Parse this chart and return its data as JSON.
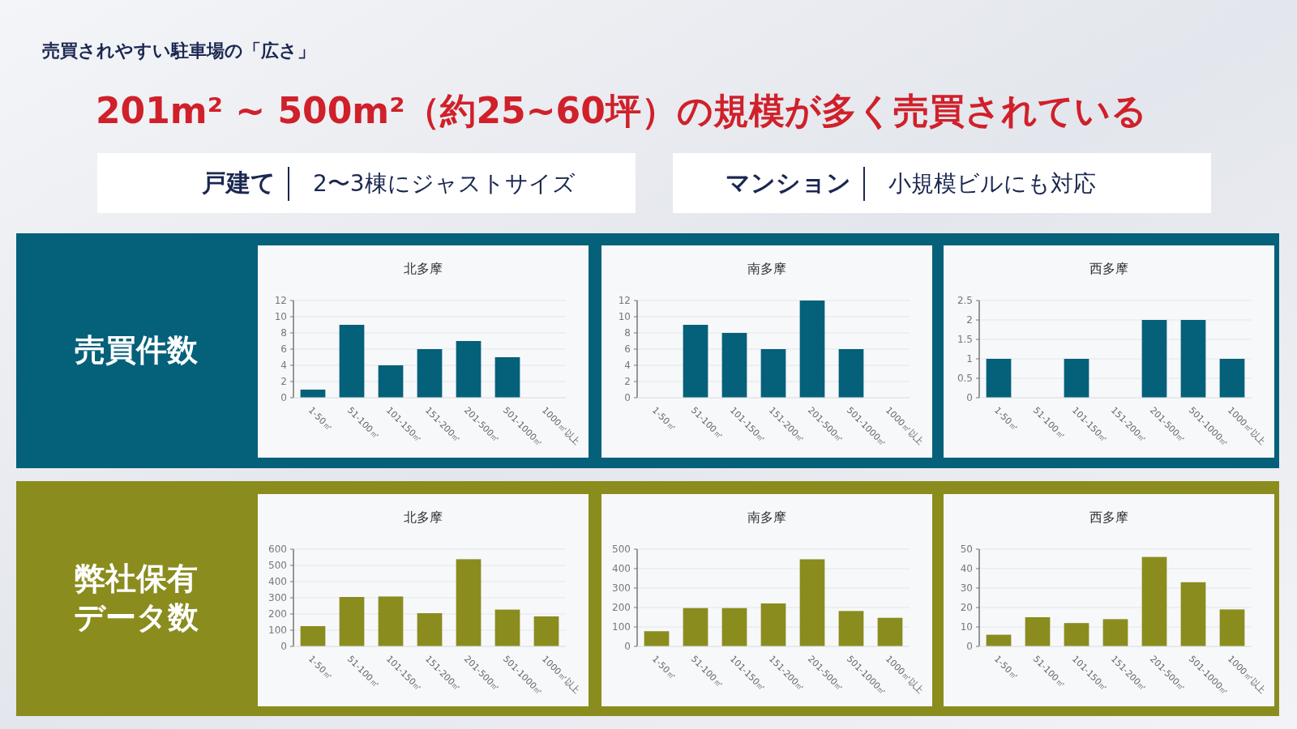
{
  "chart_data": [
    {
      "type": "bar",
      "title": "北多摩",
      "ylabel": "売買件数",
      "annotations": [
        "売買されやすい駐車場の「広さ」",
        "201m² ~ 500m²（約25~60坪）の規模が多く売買されている",
        "戸建て",
        "2〜3棟にジャストサイズ",
        "マンション",
        "小規模ビルにも対応"
      ],
      "categories": [
        "1-50㎡",
        "51-100㎡",
        "101-150㎡",
        "151-200㎡",
        "201-500㎡",
        "501-1000㎡",
        "1000㎡以上"
      ],
      "values": [
        1,
        9,
        4,
        6,
        7,
        5,
        0
      ],
      "color": "#05607a",
      "ylim": [
        0,
        12
      ],
      "yticks": [
        0,
        2,
        4,
        6,
        8,
        10,
        12
      ],
      "grid": "y"
    },
    {
      "type": "bar",
      "title": "南多摩",
      "categories": [
        "1-50㎡",
        "51-100㎡",
        "101-150㎡",
        "151-200㎡",
        "201-500㎡",
        "501-1000㎡",
        "1000㎡以上"
      ],
      "values": [
        0,
        9,
        8,
        6,
        12,
        6,
        0
      ],
      "color": "#05607a",
      "ylim": [
        0,
        12
      ],
      "yticks": [
        0,
        2,
        4,
        6,
        8,
        10,
        12
      ],
      "grid": "y"
    },
    {
      "type": "bar",
      "title": "西多摩",
      "categories": [
        "1-50㎡",
        "51-100㎡",
        "101-150㎡",
        "151-200㎡",
        "201-500㎡",
        "501-1000㎡",
        "1000㎡以上"
      ],
      "values": [
        1,
        0,
        1,
        0,
        2,
        2,
        1
      ],
      "color": "#05607a",
      "ylim": [
        0,
        2.5
      ],
      "yticks": [
        0,
        0.5,
        1,
        1.5,
        2,
        2.5
      ],
      "grid": "y"
    },
    {
      "type": "bar",
      "title": "北多摩",
      "ylabel": "弊社保有データ数",
      "categories": [
        "1-50㎡",
        "51-100㎡",
        "101-150㎡",
        "151-200㎡",
        "201-500㎡",
        "501-1000㎡",
        "1000㎡以上"
      ],
      "values": [
        125,
        305,
        308,
        205,
        538,
        227,
        185
      ],
      "color": "#8a8c1e",
      "ylim": [
        0,
        600
      ],
      "yticks": [
        0,
        100,
        200,
        300,
        400,
        500,
        600
      ],
      "grid": "y"
    },
    {
      "type": "bar",
      "title": "南多摩",
      "categories": [
        "1-50㎡",
        "51-100㎡",
        "101-150㎡",
        "151-200㎡",
        "201-500㎡",
        "501-1000㎡",
        "1000㎡以上"
      ],
      "values": [
        78,
        197,
        197,
        221,
        448,
        182,
        147
      ],
      "color": "#8a8c1e",
      "ylim": [
        0,
        500
      ],
      "yticks": [
        0,
        100,
        200,
        300,
        400,
        500
      ],
      "grid": "y"
    },
    {
      "type": "bar",
      "title": "西多摩",
      "categories": [
        "1-50㎡",
        "51-100㎡",
        "101-150㎡",
        "151-200㎡",
        "201-500㎡",
        "501-1000㎡",
        "1000㎡以上"
      ],
      "values": [
        6,
        15,
        12,
        14,
        46,
        33,
        19
      ],
      "color": "#8a8c1e",
      "ylim": [
        0,
        50
      ],
      "yticks": [
        0,
        10,
        20,
        30,
        40,
        50
      ],
      "grid": "y"
    }
  ]
}
